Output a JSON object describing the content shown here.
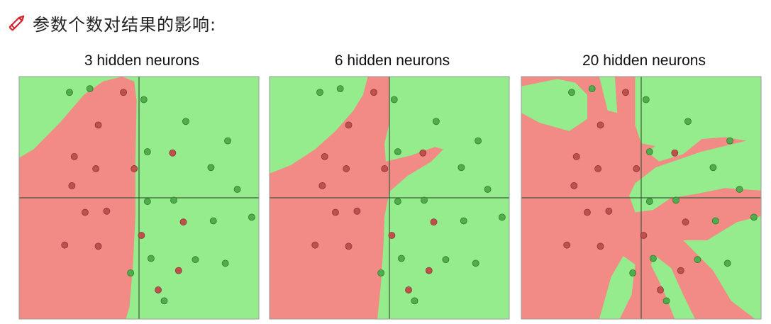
{
  "heading": {
    "text": "参数个数对结果的影响:",
    "icon": "pencil-icon",
    "icon_color": "#d9222a"
  },
  "colors": {
    "red_region": "#f28b86",
    "green_region": "#95ec8c",
    "red_point": "#c0504b",
    "green_point": "#4fae4b",
    "axis": "#3d5a3d"
  },
  "chart_data": [
    {
      "type": "scatter",
      "title": "3 hidden neurons",
      "xlim": [
        -1,
        1
      ],
      "ylim": [
        -1,
        1
      ],
      "red_points": [
        [
          -0.13,
          0.87
        ],
        [
          -0.34,
          0.6
        ],
        [
          -0.54,
          0.34
        ],
        [
          -0.36,
          0.24
        ],
        [
          -0.56,
          0.1
        ],
        [
          -0.45,
          -0.12
        ],
        [
          -0.27,
          -0.11
        ],
        [
          -0.62,
          -0.39
        ],
        [
          -0.34,
          -0.4
        ],
        [
          -0.04,
          0.24
        ],
        [
          0.28,
          0.37
        ],
        [
          0.37,
          -0.2
        ],
        [
          0.33,
          -0.6
        ],
        [
          0.16,
          -0.76
        ],
        [
          0.02,
          -0.31
        ]
      ],
      "green_points": [
        [
          -0.58,
          0.87
        ],
        [
          -0.41,
          0.9
        ],
        [
          0.04,
          0.81
        ],
        [
          0.39,
          0.63
        ],
        [
          0.74,
          0.47
        ],
        [
          0.07,
          0.38
        ],
        [
          0.6,
          0.25
        ],
        [
          0.82,
          0.07
        ],
        [
          0.94,
          -0.16
        ],
        [
          0.07,
          -0.03
        ],
        [
          0.29,
          -0.02
        ],
        [
          0.62,
          -0.19
        ],
        [
          0.1,
          -0.5
        ],
        [
          0.47,
          -0.51
        ],
        [
          0.72,
          -0.54
        ],
        [
          -0.07,
          -0.62
        ],
        [
          0.21,
          -0.85
        ]
      ],
      "class_regions": [
        {
          "class": "red",
          "polygon": [
            [
              -1,
              0.33
            ],
            [
              -0.88,
              0.4
            ],
            [
              -0.66,
              0.62
            ],
            [
              -0.46,
              0.85
            ],
            [
              -0.3,
              0.96
            ],
            [
              -0.14,
              1.0
            ],
            [
              -0.04,
              0.96
            ],
            [
              -0.02,
              0.8
            ],
            [
              -0.03,
              0.3
            ],
            [
              -0.03,
              -0.15
            ],
            [
              -0.05,
              -0.55
            ],
            [
              -0.08,
              -0.9
            ],
            [
              -0.11,
              -1
            ],
            [
              -1,
              -1
            ]
          ]
        }
      ]
    },
    {
      "type": "scatter",
      "title": "6 hidden neurons",
      "xlim": [
        -1,
        1
      ],
      "ylim": [
        -1,
        1
      ],
      "red_points": [
        [
          -0.13,
          0.87
        ],
        [
          -0.34,
          0.6
        ],
        [
          -0.54,
          0.34
        ],
        [
          -0.36,
          0.24
        ],
        [
          -0.56,
          0.1
        ],
        [
          -0.45,
          -0.12
        ],
        [
          -0.27,
          -0.11
        ],
        [
          -0.62,
          -0.39
        ],
        [
          -0.34,
          -0.4
        ],
        [
          -0.04,
          0.24
        ],
        [
          0.28,
          0.37
        ],
        [
          0.37,
          -0.2
        ],
        [
          0.33,
          -0.6
        ],
        [
          0.16,
          -0.76
        ],
        [
          0.02,
          -0.31
        ]
      ],
      "green_points": [
        [
          -0.58,
          0.87
        ],
        [
          -0.41,
          0.9
        ],
        [
          0.04,
          0.81
        ],
        [
          0.39,
          0.63
        ],
        [
          0.74,
          0.47
        ],
        [
          0.07,
          0.38
        ],
        [
          0.6,
          0.25
        ],
        [
          0.82,
          0.07
        ],
        [
          0.94,
          -0.16
        ],
        [
          0.07,
          -0.03
        ],
        [
          0.29,
          -0.02
        ],
        [
          0.62,
          -0.19
        ],
        [
          0.1,
          -0.5
        ],
        [
          0.47,
          -0.51
        ],
        [
          0.72,
          -0.54
        ],
        [
          -0.07,
          -0.62
        ],
        [
          0.21,
          -0.85
        ]
      ],
      "class_regions": [
        {
          "class": "red",
          "polygon": [
            [
              -1,
              0.2
            ],
            [
              -0.82,
              0.27
            ],
            [
              -0.62,
              0.4
            ],
            [
              -0.45,
              0.55
            ],
            [
              -0.3,
              0.72
            ],
            [
              -0.22,
              0.85
            ],
            [
              -0.18,
              1.0
            ],
            [
              0.0,
              1.0
            ],
            [
              0.0,
              0.62
            ],
            [
              -0.04,
              0.45
            ],
            [
              -0.03,
              0.3
            ],
            [
              0.18,
              0.35
            ],
            [
              0.38,
              0.42
            ],
            [
              0.45,
              0.4
            ],
            [
              0.35,
              0.3
            ],
            [
              0.15,
              0.18
            ],
            [
              0.0,
              0.05
            ],
            [
              -0.04,
              -0.15
            ],
            [
              -0.05,
              -0.4
            ],
            [
              -0.07,
              -0.7
            ],
            [
              -0.1,
              -1
            ],
            [
              -1,
              -1
            ]
          ]
        }
      ]
    },
    {
      "type": "scatter",
      "title": "20 hidden neurons",
      "xlim": [
        -1,
        1
      ],
      "ylim": [
        -1,
        1
      ],
      "red_points": [
        [
          -0.13,
          0.87
        ],
        [
          -0.34,
          0.6
        ],
        [
          -0.54,
          0.34
        ],
        [
          -0.36,
          0.24
        ],
        [
          -0.56,
          0.1
        ],
        [
          -0.45,
          -0.12
        ],
        [
          -0.27,
          -0.11
        ],
        [
          -0.62,
          -0.39
        ],
        [
          -0.34,
          -0.4
        ],
        [
          -0.04,
          0.24
        ],
        [
          0.28,
          0.37
        ],
        [
          0.37,
          -0.2
        ],
        [
          0.33,
          -0.6
        ],
        [
          0.16,
          -0.76
        ],
        [
          0.02,
          -0.31
        ]
      ],
      "green_points": [
        [
          -0.58,
          0.87
        ],
        [
          -0.41,
          0.9
        ],
        [
          0.04,
          0.81
        ],
        [
          0.39,
          0.63
        ],
        [
          0.74,
          0.47
        ],
        [
          0.07,
          0.38
        ],
        [
          0.6,
          0.25
        ],
        [
          0.82,
          0.07
        ],
        [
          0.94,
          -0.16
        ],
        [
          0.07,
          -0.03
        ],
        [
          0.29,
          -0.02
        ],
        [
          0.62,
          -0.19
        ],
        [
          0.1,
          -0.5
        ],
        [
          0.47,
          -0.51
        ],
        [
          0.72,
          -0.54
        ],
        [
          -0.07,
          -0.62
        ],
        [
          0.21,
          -0.85
        ]
      ],
      "class_regions": [
        {
          "class": "green",
          "polygon": [
            [
              -1,
              0.92
            ],
            [
              -0.7,
              0.98
            ],
            [
              -0.55,
              0.95
            ],
            [
              -0.45,
              0.85
            ],
            [
              -0.45,
              0.65
            ],
            [
              -0.6,
              0.55
            ],
            [
              -0.85,
              0.62
            ],
            [
              -1,
              0.7
            ]
          ]
        },
        {
          "class": "green",
          "polygon": [
            [
              -0.35,
              1.0
            ],
            [
              -0.22,
              1.0
            ],
            [
              -0.2,
              0.7
            ],
            [
              -0.28,
              0.72
            ]
          ]
        },
        {
          "class": "green",
          "polygon": [
            [
              -0.05,
              1.0
            ],
            [
              1,
              1.0
            ],
            [
              1,
              0.45
            ],
            [
              0.7,
              0.5
            ],
            [
              0.45,
              0.48
            ],
            [
              0.3,
              0.42
            ],
            [
              0.15,
              0.42
            ],
            [
              0.0,
              0.45
            ],
            [
              -0.05,
              0.6
            ]
          ]
        },
        {
          "class": "green",
          "polygon": [
            [
              0.05,
              0.38
            ],
            [
              0.3,
              0.55
            ],
            [
              0.55,
              0.7
            ],
            [
              0.66,
              0.66
            ],
            [
              0.5,
              0.48
            ],
            [
              0.35,
              0.36
            ],
            [
              0.15,
              0.3
            ]
          ]
        },
        {
          "class": "green",
          "polygon": [
            [
              -0.1,
              0.02
            ],
            [
              -0.05,
              0.12
            ],
            [
              0.12,
              0.25
            ],
            [
              0.5,
              0.38
            ],
            [
              1,
              0.5
            ],
            [
              1,
              0.06
            ],
            [
              0.7,
              0.08
            ],
            [
              0.45,
              0.03
            ],
            [
              0.25,
              0.0
            ],
            [
              0.1,
              -0.1
            ],
            [
              -0.05,
              -0.12
            ]
          ]
        },
        {
          "class": "green",
          "polygon": [
            [
              0.35,
              -0.35
            ],
            [
              0.55,
              -0.35
            ],
            [
              0.8,
              -0.2
            ],
            [
              1,
              -0.15
            ],
            [
              1,
              -1
            ],
            [
              0.95,
              -1
            ],
            [
              0.75,
              -0.85
            ],
            [
              0.6,
              -0.6
            ],
            [
              0.45,
              -0.45
            ]
          ]
        },
        {
          "class": "green",
          "polygon": [
            [
              -0.35,
              -1
            ],
            [
              -0.25,
              -0.65
            ],
            [
              -0.15,
              -0.48
            ],
            [
              -0.05,
              -0.55
            ],
            [
              -0.08,
              -0.8
            ],
            [
              -0.18,
              -1
            ]
          ]
        },
        {
          "class": "green",
          "polygon": [
            [
              0.08,
              -0.55
            ],
            [
              0.12,
              -0.48
            ],
            [
              0.25,
              -0.58
            ],
            [
              0.35,
              -0.8
            ],
            [
              0.45,
              -1
            ],
            [
              0.28,
              -1
            ],
            [
              0.18,
              -0.75
            ]
          ]
        }
      ]
    }
  ]
}
